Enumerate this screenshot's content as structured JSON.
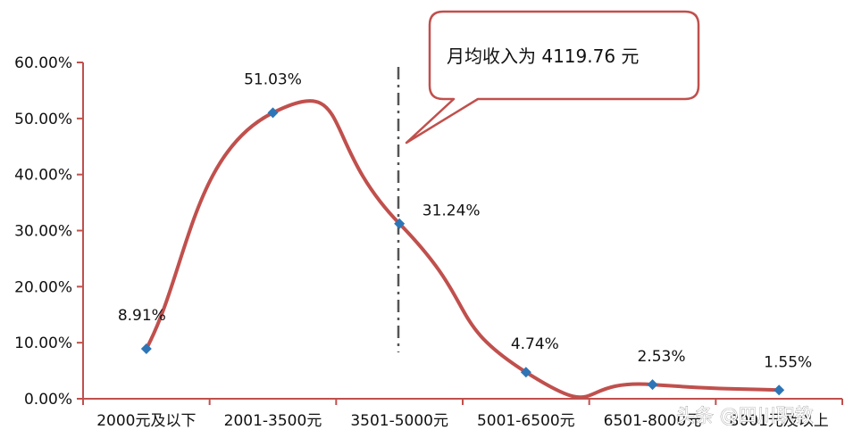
{
  "chart_data": {
    "type": "line",
    "categories": [
      "2000元及以下",
      "2001-3500元",
      "3501-5000元",
      "5001-6500元",
      "6501-8000元",
      "8001元及以上"
    ],
    "values": [
      8.91,
      51.03,
      31.24,
      4.74,
      2.53,
      1.55
    ],
    "data_labels": [
      "8.91%",
      "51.03%",
      "31.24%",
      "4.74%",
      "2.53%",
      "1.55%"
    ],
    "yticks": [
      "0.00%",
      "10.00%",
      "20.00%",
      "30.00%",
      "40.00%",
      "50.00%",
      "60.00%"
    ],
    "ylim": [
      0,
      60
    ],
    "smooth": true,
    "grid": false,
    "annotation": {
      "text": "月均收入为 4119.76 元",
      "marker_value": 4119.76
    },
    "colors": {
      "line": "#c0504d",
      "marker": "#2e75b6",
      "axis": "#c0504d",
      "callout_border": "#c0504d",
      "dashdot": "#555555"
    }
  },
  "watermark": "头条 @四川职教"
}
